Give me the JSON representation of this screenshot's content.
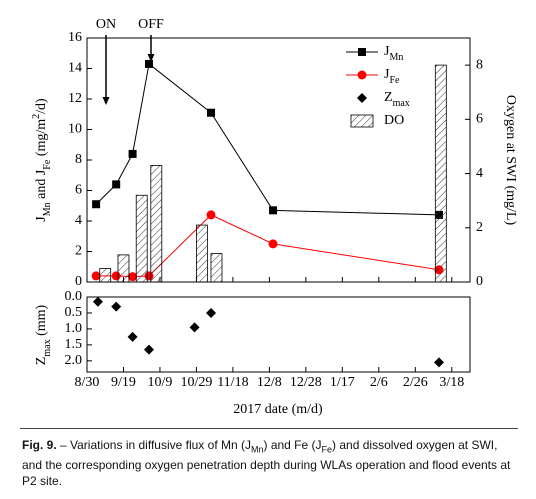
{
  "chart_data": [
    {
      "type": "line",
      "ylabel": [
        {
          "text": "J"
        },
        {
          "text": "Mn",
          "sub": true
        },
        {
          "text": " and J"
        },
        {
          "text": "Fe",
          "sub": true
        },
        {
          "text": " (mg/m"
        },
        {
          "text": "2",
          "sup": true
        },
        {
          "text": "/d)"
        }
      ],
      "y2label": [
        {
          "text": "Oxygen at SWI (mg/L)"
        }
      ],
      "annotations": [
        "ON",
        "OFF"
      ],
      "xlim": [
        "8/30",
        "3/28"
      ],
      "ylim": [
        0,
        16
      ],
      "yticks": [
        0,
        2,
        4,
        6,
        8,
        10,
        12,
        14,
        16
      ],
      "y2lim": [
        0,
        9
      ],
      "y2ticks": [
        0,
        2,
        4,
        6,
        8
      ],
      "series": [
        {
          "name": "J",
          "name_sub": "Mn",
          "color": "#000000",
          "marker": "square",
          "x": [
            "9/4",
            "9/15",
            "9/24",
            "10/3",
            "11/6",
            "12/10",
            "3/11"
          ],
          "values": [
            5.1,
            6.4,
            8.4,
            14.3,
            11.1,
            4.7,
            4.4
          ]
        },
        {
          "name": "J",
          "name_sub": "Fe",
          "color": "#ff0000",
          "marker": "circle",
          "x": [
            "9/4",
            "9/15",
            "9/24",
            "10/3",
            "11/6",
            "12/10",
            "3/11"
          ],
          "values": [
            0.4,
            0.4,
            0.35,
            0.4,
            4.4,
            2.5,
            0.8
          ]
        },
        {
          "name": "DO",
          "color": "#000000",
          "kind": "bar",
          "axis": "y2",
          "x": [
            "9/9",
            "9/19",
            "9/29",
            "10/7",
            "11/1",
            "11/9",
            "3/12"
          ],
          "values": [
            0.5,
            1.0,
            3.2,
            4.3,
            2.1,
            1.05,
            8.0
          ]
        }
      ]
    },
    {
      "type": "scatter",
      "ylabel": [
        {
          "text": "Z"
        },
        {
          "text": "max",
          "sub": true
        },
        {
          "text": " (mm)"
        }
      ],
      "xlabel": "2017 date (m/d)",
      "xlim": [
        "8/30",
        "3/28"
      ],
      "xticks": [
        "8/30",
        "9/19",
        "10/9",
        "10/29",
        "11/18",
        "12/8",
        "12/28",
        "1/17",
        "2/6",
        "2/26",
        "3/18"
      ],
      "ylim": [
        0,
        2.35
      ],
      "yinvert": true,
      "yticks": [
        {
          "value": 0,
          "label": "0.0"
        },
        0.5,
        {
          "value": 1,
          "label": "1.0"
        },
        1.5,
        {
          "value": 2,
          "label": "2.0"
        }
      ],
      "series": [
        {
          "name": "Z",
          "name_sub": "max",
          "color": "#000000",
          "marker": "diamond",
          "x": [
            "9/5",
            "9/15",
            "9/24",
            "10/3",
            "10/28",
            "11/6",
            "3/11"
          ],
          "values": [
            0.15,
            0.3,
            1.25,
            1.65,
            0.95,
            0.5,
            2.05
          ]
        }
      ]
    }
  ],
  "caption": {
    "label": "Fig. 9.",
    "segments": [
      {
        "text": " – Variations in diffusive flux of Mn (J"
      },
      {
        "text": "Mn",
        "sub": true
      },
      {
        "text": ") and Fe (J"
      },
      {
        "text": "Fe",
        "sub": true
      },
      {
        "text": ") and dissolved oxygen at SWI, and the corresponding oxygen penetration depth during WLAs operation and flood events at P2 site."
      }
    ]
  }
}
